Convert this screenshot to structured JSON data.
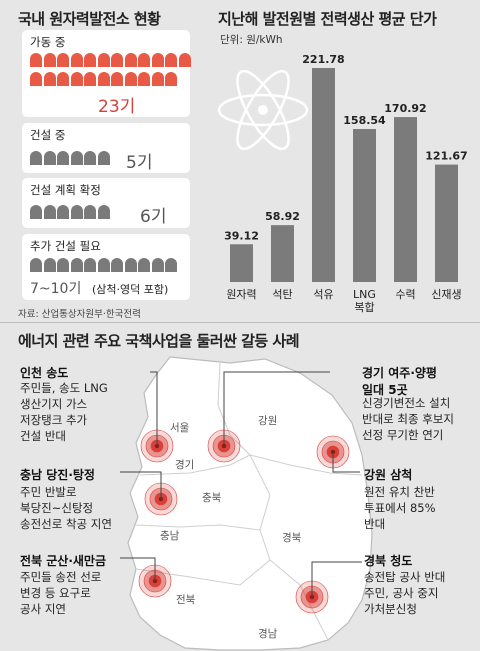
{
  "left_title": "국내 원자력발전소 현황",
  "cards": [
    {
      "label": "가동 중",
      "count": "23기",
      "icon_color": "red"
    },
    {
      "label": "건설 중",
      "count": "5기",
      "icon_color": "gray"
    },
    {
      "label": "건설 계획 확정",
      "count": "6기",
      "icon_color": "gray"
    },
    {
      "label": "추가 건설 필요",
      "count": "7~10기",
      "note": "(삼척·영덕 포함)",
      "icon_color": "gray"
    }
  ],
  "source": "자료: 산업통상자원부·한국전력",
  "chart_data": {
    "type": "bar",
    "title": "지난해 발전원별 전력생산 평균 단가",
    "unit": "단위: 원/kWh",
    "categories": [
      "원자력",
      "석탄",
      "석유",
      "LNG\n복합",
      "수력",
      "신재생"
    ],
    "values": [
      39.12,
      58.92,
      221.78,
      158.54,
      170.92,
      121.67
    ],
    "value_labels": [
      "39.12",
      "58.92",
      "221.78",
      "158.54",
      "170.92",
      "121.67"
    ],
    "bar_color": "#7b7b7b",
    "ylim": [
      0,
      221.78
    ]
  },
  "conflict_title": "에너지 관련 주요 국책사업을 둘러싼 갈등 사례",
  "map_labels": [
    "서울",
    "경기",
    "강원",
    "충북",
    "충남",
    "경북",
    "전북",
    "경남"
  ],
  "callouts": [
    {
      "title": "인천 송도",
      "desc": "주민들, 송도 LNG\n생산기지 가스\n저장탱크 추가\n건설 반대"
    },
    {
      "title": "충남 당진·탕정",
      "desc": "주민 반발로\n북당진~신탕정\n송전선로 착공 지연"
    },
    {
      "title": "전북 군산·새만금",
      "desc": "주민들 송전 선로\n변경 등 요구로\n공사 지연"
    },
    {
      "title": "경기 여주·양평\n일대 5곳",
      "desc": "신경기변전소 설치\n반대로 최종 후보지\n선정 무기한 연기"
    },
    {
      "title": "강원 삼척",
      "desc": "원전 유치 찬반\n투표에서 85%\n반대"
    },
    {
      "title": "경북 청도",
      "desc": "송전탑 공사 반대\n주민, 공사 중지\n가처분신청"
    }
  ],
  "colors": {
    "accent_red": "#d8403a",
    "bar_gray": "#7b7b7b",
    "map_fill": "#ffffff",
    "map_stroke": "#bcbcbc"
  }
}
